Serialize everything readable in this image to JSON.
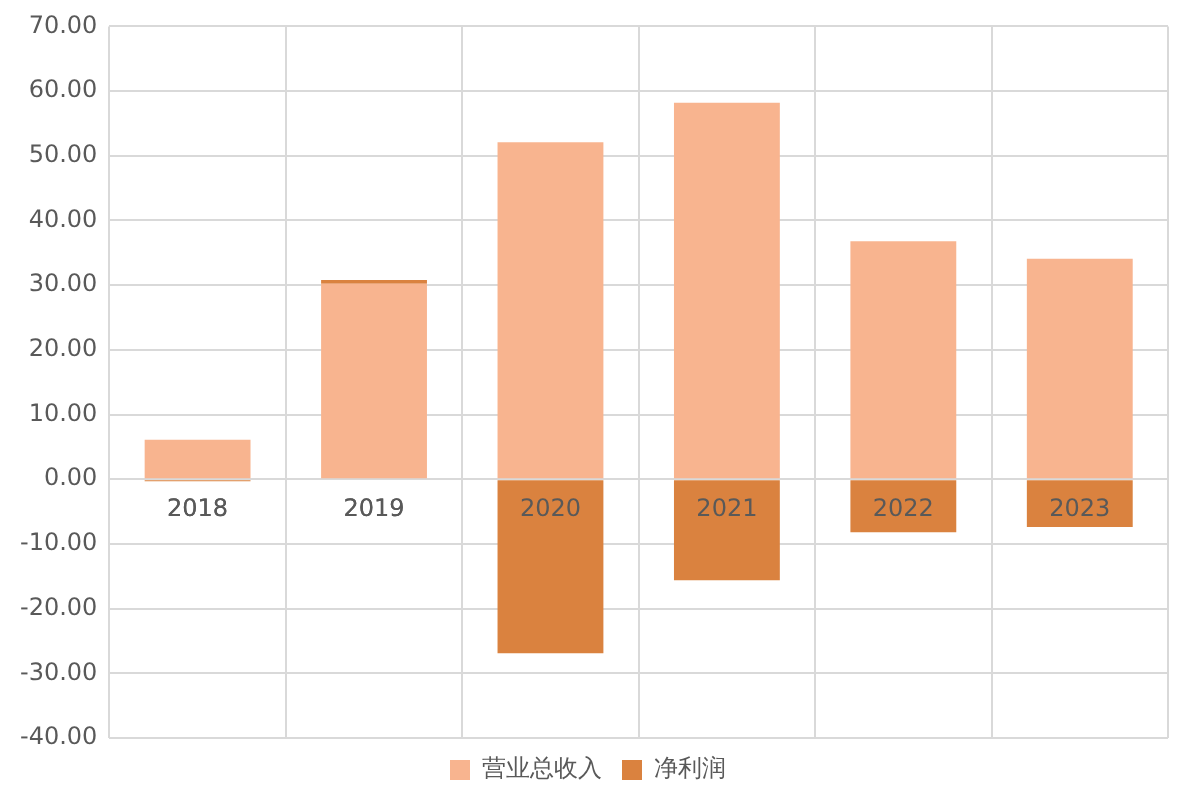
{
  "chart_data": {
    "type": "bar",
    "stacked": true,
    "categories": [
      "2018",
      "2019",
      "2020",
      "2021",
      "2022",
      "2023"
    ],
    "series": [
      {
        "name": "营业总收入",
        "color": "#f8b48f",
        "values": [
          6.1,
          30.2,
          52.1,
          58.2,
          36.8,
          34.1
        ]
      },
      {
        "name": "净利润",
        "color": "#da823f",
        "values": [
          -0.3,
          0.6,
          -26.9,
          -15.6,
          -8.2,
          -7.4
        ]
      }
    ],
    "ylim": [
      -40,
      70
    ],
    "yticks": [
      {
        "value": -40,
        "label": "-40.00"
      },
      {
        "value": -30,
        "label": "-30.00"
      },
      {
        "value": -20,
        "label": "-20.00"
      },
      {
        "value": -10,
        "label": "-10.00"
      },
      {
        "value": 0,
        "label": "0.00"
      },
      {
        "value": 10,
        "label": "10.00"
      },
      {
        "value": 20,
        "label": "20.00"
      },
      {
        "value": 30,
        "label": "30.00"
      },
      {
        "value": 40,
        "label": "40.00"
      },
      {
        "value": 50,
        "label": "50.00"
      },
      {
        "value": 60,
        "label": "60.00"
      },
      {
        "value": 70,
        "label": "70.00"
      }
    ],
    "grid": true,
    "legend": "bottom"
  }
}
